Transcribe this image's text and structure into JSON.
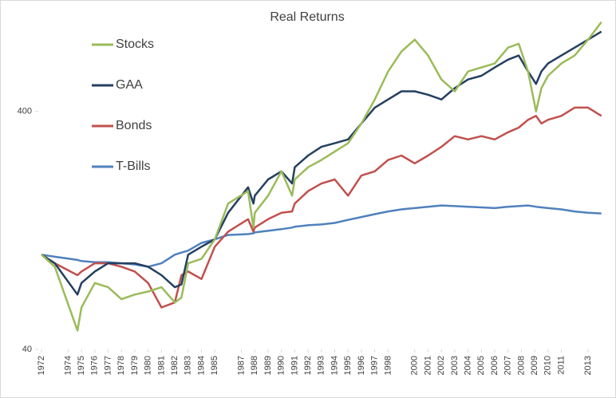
{
  "chart_data": {
    "type": "line",
    "title": "Real Returns",
    "log_scale": true,
    "grid": false,
    "legend": "top-left",
    "x": [
      1972,
      1973,
      1974.7,
      1975,
      1976,
      1977,
      1978,
      1979,
      1980,
      1981,
      1982,
      1982.5,
      1983,
      1984,
      1985,
      1986,
      1987.5,
      1987.9,
      1988,
      1989,
      1990,
      1990.8,
      1991,
      1992,
      1993,
      1994,
      1995,
      1996,
      1997,
      1998,
      1999,
      2000,
      2001,
      2002,
      2003,
      2004,
      2005,
      2006,
      2007,
      2007.8,
      2008.5,
      2009.1,
      2009.5,
      2010,
      2011,
      2012,
      2013,
      2014
    ],
    "xlim": [
      1972,
      2014.2
    ],
    "xticks": [
      1972,
      1974,
      1975,
      1976,
      1977,
      1978,
      1979,
      1980,
      1981,
      1982,
      1983,
      1984,
      1985,
      1987,
      1988,
      1989,
      1990,
      1991,
      1992,
      1993,
      1994,
      1995,
      1996,
      1997,
      1998,
      2000,
      2001,
      2002,
      2003,
      2004,
      2005,
      2006,
      2007,
      2008,
      2009,
      2010,
      2011,
      2013
    ],
    "ylim": [
      40,
      1000
    ],
    "yticks": [
      40,
      400
    ],
    "series": [
      {
        "name": "Stocks",
        "color": "#9bbb59",
        "values": [
          100,
          89,
          48,
          60,
          76,
          73,
          65,
          68,
          70,
          73,
          63,
          66,
          92,
          96,
          116,
          164,
          185,
          130,
          150,
          177,
          224,
          177,
          207,
          233,
          250,
          271,
          294,
          356,
          449,
          589,
          714,
          801,
          687,
          545,
          486,
          589,
          612,
          636,
          742,
          770,
          589,
          400,
          501,
          565,
          636,
          687,
          801,
          950
        ]
      },
      {
        "name": "GAA",
        "color": "#243f60",
        "values": [
          100,
          92,
          68,
          76,
          85,
          92,
          92,
          92,
          89,
          82,
          73,
          75,
          100,
          108,
          116,
          150,
          192,
          164,
          177,
          207,
          224,
          199,
          233,
          261,
          284,
          294,
          305,
          356,
          415,
          449,
          486,
          486,
          470,
          449,
          501,
          545,
          565,
          612,
          660,
          687,
          589,
          522,
          589,
          636,
          687,
          742,
          801,
          866
        ]
      },
      {
        "name": "Bonds",
        "color": "#c0504d",
        "values": [
          100,
          92,
          82,
          85,
          92,
          92,
          89,
          85,
          76,
          60,
          63,
          82,
          85,
          79,
          108,
          125,
          141,
          125,
          130,
          141,
          150,
          152,
          164,
          185,
          199,
          207,
          177,
          215,
          224,
          250,
          261,
          242,
          261,
          284,
          315,
          305,
          315,
          305,
          327,
          342,
          369,
          383,
          356,
          369,
          383,
          415,
          415,
          383
        ]
      },
      {
        "name": "T-Bills",
        "color": "#4f81bd",
        "values": [
          100,
          98,
          95,
          94,
          93,
          93,
          92,
          91,
          89,
          92,
          100,
          102,
          104,
          112,
          116,
          121,
          122,
          123,
          124,
          126,
          128,
          130,
          131,
          133,
          134,
          136,
          140,
          144,
          148,
          152,
          155,
          157,
          159,
          161,
          160,
          159,
          158,
          157,
          159,
          160,
          161,
          159,
          158,
          157,
          155,
          152,
          150,
          149
        ]
      }
    ]
  }
}
